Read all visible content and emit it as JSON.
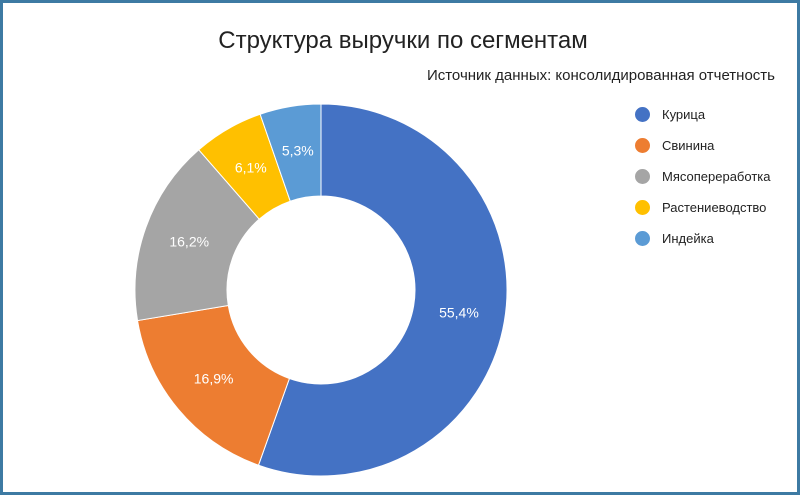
{
  "chart_data": {
    "type": "pie",
    "title": "Структура выручки по сегментам",
    "subtitle": "Источник данных: консолидированная отчетность",
    "legend_position": "right",
    "categories": [
      "Курица",
      "Свинина",
      "Мясопереработка",
      "Растениеводство",
      "Индейка"
    ],
    "values": [
      55.4,
      16.9,
      16.2,
      6.1,
      5.3
    ],
    "value_labels": [
      "55,4%",
      "16,9%",
      "16,2%",
      "6,1%",
      "5,3%"
    ],
    "colors": [
      "#4472c4",
      "#ed7d31",
      "#a5a5a5",
      "#ffc000",
      "#5b9bd5"
    ],
    "donut": true
  }
}
